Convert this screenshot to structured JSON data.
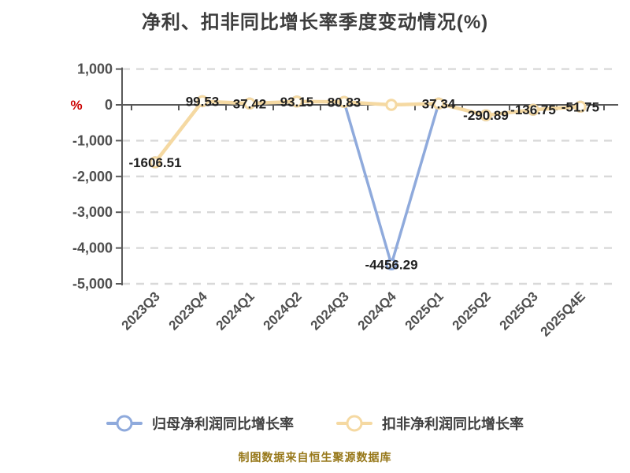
{
  "title": "净利、扣非同比增长率季度变动情况(%)",
  "caption": "制图数据来自恒生聚源数据库",
  "chart_data": {
    "type": "line",
    "categories": [
      "2023Q3",
      "2023Q4",
      "2024Q1",
      "2024Q2",
      "2024Q3",
      "2024Q4",
      "2025Q1",
      "2025Q2",
      "2025Q3",
      "2025Q4E"
    ],
    "series": [
      {
        "name": "归母净利润同比增长率",
        "color": "#8faadc",
        "marker_fill": "#ffffff",
        "values": [
          -1606.51,
          99.53,
          37.42,
          93.15,
          80.83,
          -4456.29,
          37.34,
          -290.89,
          -136.75,
          -51.75
        ]
      },
      {
        "name": "扣非净利润同比增长率",
        "color": "#f5d9a2",
        "marker_fill": "#fffdf6",
        "values": [
          -1606.51,
          99.53,
          37.42,
          93.15,
          80.83,
          0,
          37.34,
          -290.89,
          -136.75,
          -51.75
        ]
      }
    ],
    "point_labels": [
      "-1606.51",
      "99.53",
      "37.42",
      "93.15",
      "80.83",
      "-4456.29",
      "37.34",
      "-290.89",
      "-136.75",
      "-51.75"
    ],
    "label_color": "#1f1f1f",
    "y_axis": {
      "unit": "%",
      "unit_color": "#cc0000",
      "ticks": [
        {
          "label": "1,000",
          "value": 1000
        },
        {
          "label": "0",
          "value": 0
        },
        {
          "label": "-1,000",
          "value": -1000
        },
        {
          "label": "-2,000",
          "value": -2000
        },
        {
          "label": "-3,000",
          "value": -3000
        },
        {
          "label": "-4,000",
          "value": -4000
        },
        {
          "label": "-5,000",
          "value": -5000
        }
      ]
    },
    "ylim": [
      -5000,
      1000
    ],
    "grid": "horizontal-dashed",
    "grid_color": "#d9d9d9",
    "axis_color": "#595959",
    "tick_label_color": "#4f4f4f",
    "legend_position": "bottom"
  }
}
